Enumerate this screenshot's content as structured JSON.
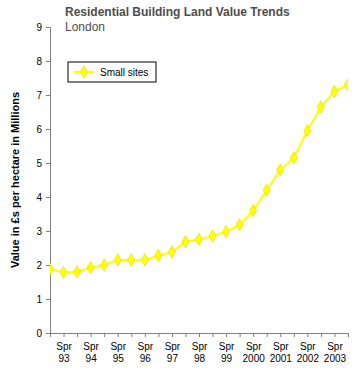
{
  "chart_data": {
    "type": "line",
    "title": "Residential Building Land Value Trends",
    "subtitle": "London",
    "y_label": "Value in £s per hectare in Millions",
    "categories": [
      null,
      "Spr 93",
      null,
      "Spr 94",
      null,
      "Spr 95",
      null,
      "Spr 96",
      null,
      "Spr 97",
      null,
      "Spr 98",
      null,
      "Spr 99",
      null,
      "Spr 2000",
      null,
      "Spr 2001",
      null,
      "Spr 2002",
      null,
      "Spr 2003",
      null
    ],
    "series": [
      {
        "name": "Small sites",
        "color": "#ffff00",
        "marker": "diamond",
        "values": [
          1.88,
          1.78,
          1.8,
          1.92,
          2.0,
          2.15,
          2.15,
          2.15,
          2.28,
          2.38,
          2.68,
          2.75,
          2.85,
          2.98,
          3.18,
          3.6,
          4.2,
          4.8,
          5.15,
          5.95,
          6.65,
          7.1,
          7.3
        ]
      }
    ],
    "ylim": [
      0,
      9
    ],
    "yticks": [
      0,
      1,
      2,
      3,
      4,
      5,
      6,
      7,
      8,
      9
    ],
    "grid": false,
    "legend": "upper left"
  }
}
